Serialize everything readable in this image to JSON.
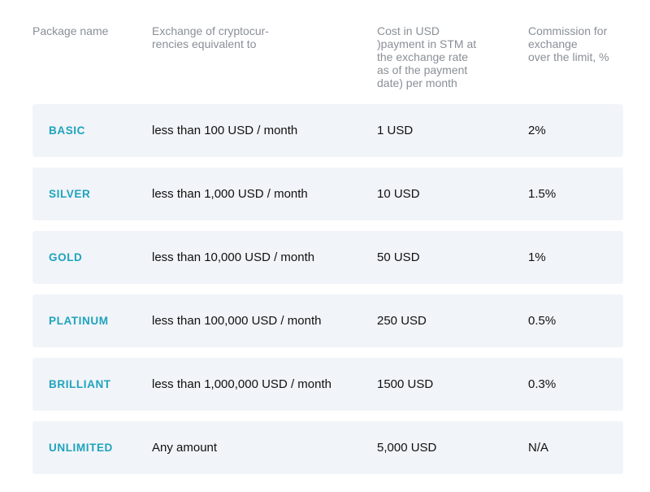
{
  "headers": {
    "package": "Package name",
    "exchange": "Exchange of cryptocur-\nrencies equivalent to",
    "cost": "Cost in USD\n)payment in STM at\nthe exchange rate\nas of the payment\ndate) per month",
    "commission": "Commission for\nexchange\nover the limit, %"
  },
  "rows": [
    {
      "name": "BASIC",
      "exchange": "less than 100 USD / month",
      "cost": "1 USD",
      "commission": "2%"
    },
    {
      "name": "SILVER",
      "exchange": "less than 1,000 USD / month",
      "cost": "10 USD",
      "commission": "1.5%"
    },
    {
      "name": "GOLD",
      "exchange": "less than 10,000 USD / month",
      "cost": "50 USD",
      "commission": "1%"
    },
    {
      "name": "PLATINUM",
      "exchange": "less than 100,000 USD / month",
      "cost": "250 USD",
      "commission": "0.5%"
    },
    {
      "name": "BRILLIANT",
      "exchange": "less than  1,000,000 USD / month",
      "cost": "1500 USD",
      "commission": "0.3%"
    },
    {
      "name": "UNLIMITED",
      "exchange": "Any amount",
      "cost": "5,000 USD",
      "commission": "N/A"
    }
  ],
  "colors": {
    "package_name": "#1ea3bd",
    "row_background": "#f1f4f8",
    "header_text": "#8a8f96"
  }
}
